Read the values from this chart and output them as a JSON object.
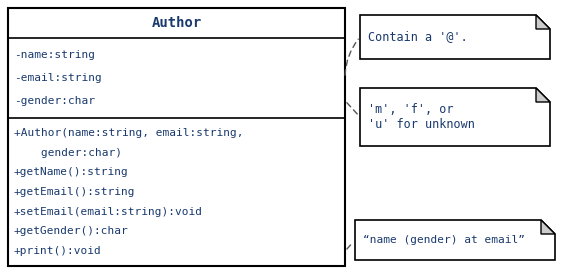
{
  "title": "Author",
  "attributes": [
    "-name:string",
    "-email:string",
    "-gender:char"
  ],
  "methods": [
    "+Author(name:string, email:string,",
    "    gender:char)",
    "+getName():string",
    "+getEmail():string",
    "+setEmail(email:string):void",
    "+getGender():char",
    "+print():void"
  ],
  "note1_text": "Contain a '@'.",
  "note2_text": "'m', 'f', or\n'u' for unknown",
  "note3_text": "“name (gender) at email”",
  "bg_color": "#ffffff",
  "box_color": "#000000",
  "text_color": "#1a3a6e",
  "note_bg": "#ffffff",
  "figsize": [
    5.68,
    2.74
  ],
  "dpi": 100
}
